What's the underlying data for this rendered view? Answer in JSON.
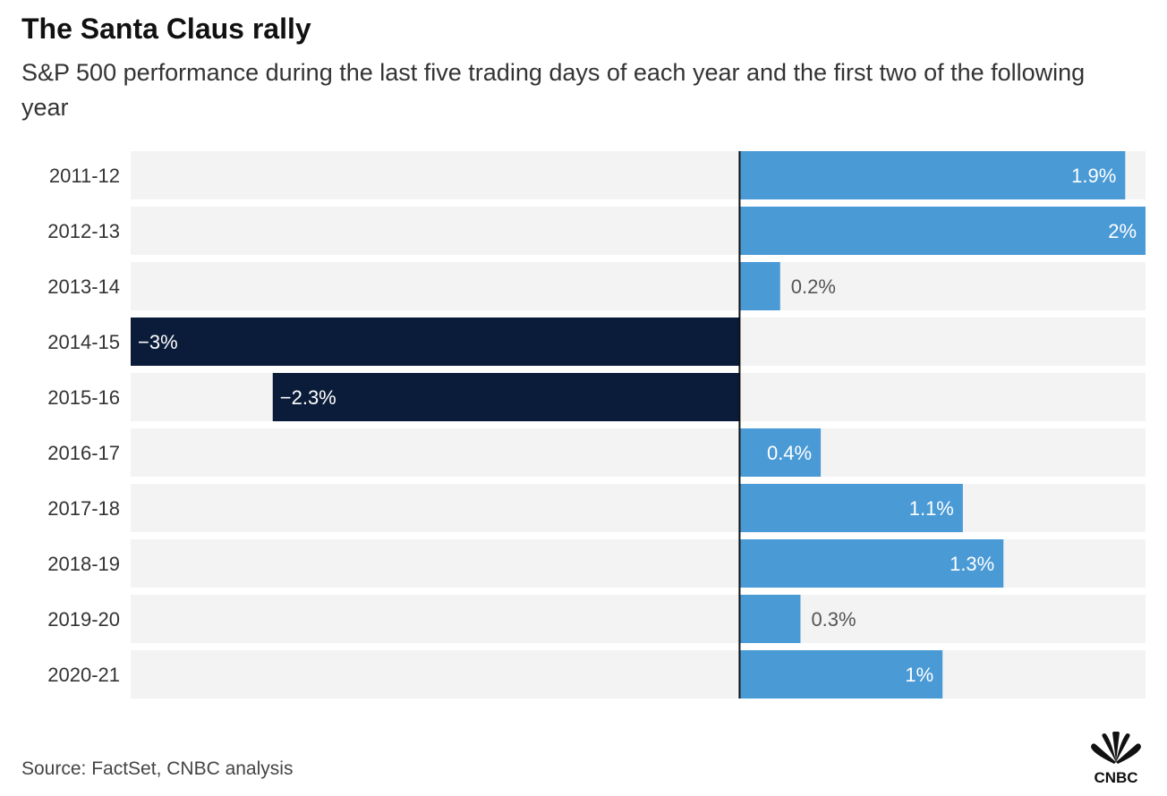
{
  "title": "The Santa Claus rally",
  "subtitle": "S&P 500 performance during the last five trading days of each year and the first two of the following year",
  "source": "Source: FactSet, CNBC analysis",
  "logo_text": "CNBC",
  "colors": {
    "positive": "#4a9ad6",
    "negative": "#0b1c3a",
    "track": "#f3f3f3",
    "axis": "#111111",
    "label_inside": "#ffffff",
    "label_outside": "#555555"
  },
  "chart_data": {
    "type": "bar",
    "orientation": "horizontal",
    "title": "The Santa Claus rally",
    "subtitle": "S&P 500 performance during the last five trading days of each year and the first two of the following year",
    "categories": [
      "2011-12",
      "2012-13",
      "2013-14",
      "2014-15",
      "2015-16",
      "2016-17",
      "2017-18",
      "2018-19",
      "2019-20",
      "2020-21"
    ],
    "values": [
      1.9,
      2,
      0.2,
      -3,
      -2.3,
      0.4,
      1.1,
      1.3,
      0.3,
      1
    ],
    "labels": [
      "1.9%",
      "2%",
      "0.2%",
      "−3%",
      "−2.3%",
      "0.4%",
      "1.1%",
      "1.3%",
      "0.3%",
      "1%"
    ],
    "unit": "%",
    "xlim": [
      -3,
      2
    ],
    "xlabel": "",
    "ylabel": "",
    "grid": false,
    "legend": "none"
  }
}
